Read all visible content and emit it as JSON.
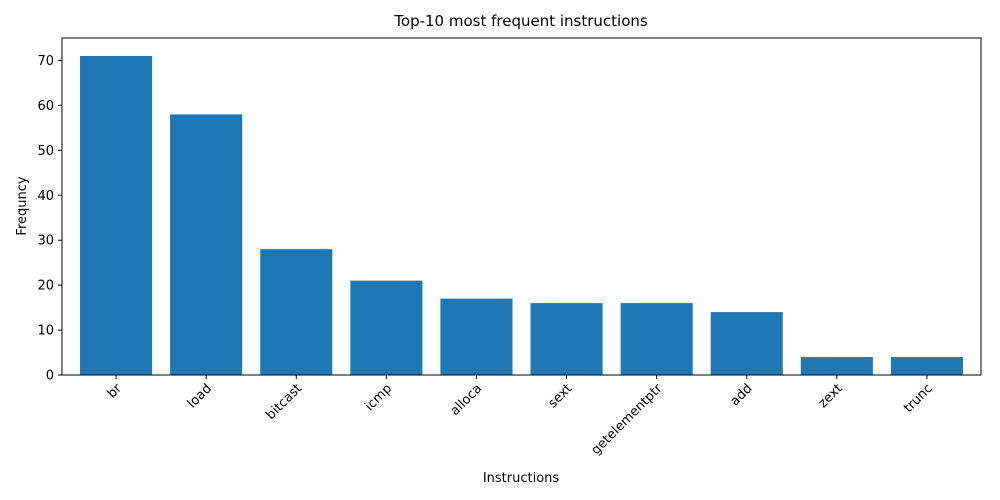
{
  "chart_data": {
    "type": "bar",
    "title": "Top-10 most frequent instructions",
    "xlabel": "Instructions",
    "ylabel": "Frequncy",
    "categories": [
      "br",
      "load",
      "bitcast",
      "icmp",
      "alloca",
      "sext",
      "getelementptr",
      "add",
      "zext",
      "trunc"
    ],
    "values": [
      71,
      58,
      28,
      21,
      17,
      16,
      16,
      14,
      4,
      4
    ],
    "ylim": [
      0,
      75
    ],
    "yticks": [
      0,
      10,
      20,
      30,
      40,
      50,
      60,
      70
    ],
    "bar_color": "#1f77b4",
    "grid": false,
    "legend": "none"
  }
}
